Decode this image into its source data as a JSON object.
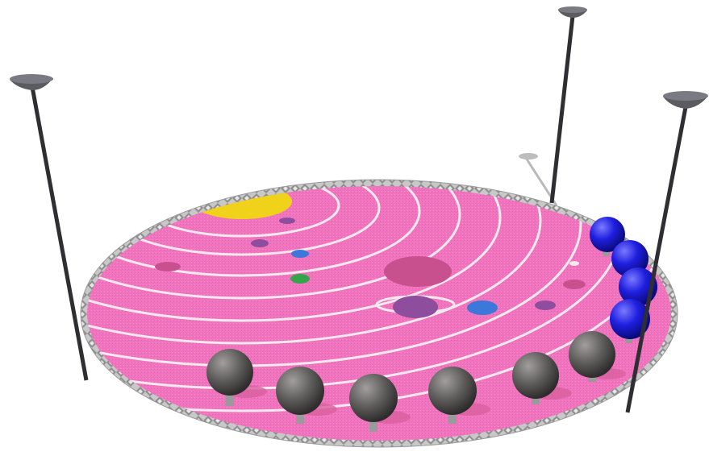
{
  "scene": {
    "subject": "solar-system-playground-render",
    "colors": {
      "background": "#ffffff",
      "surface": "#ef74bd",
      "surface_shadow": "#d9609f",
      "orbit_line": "#f6e9ee",
      "border": "#bdbdbd",
      "sun": "#f0d21b",
      "planet_purple": "#8e4e9d",
      "planet_blue": "#3b78d9",
      "planet_green": "#35a44a",
      "planet_dark_pink": "#c9508f",
      "post": "#2f2f33",
      "lamp": "#5b5b62",
      "seat_grey": "#5f5c5c",
      "seat_blue": "#1f1fe0"
    },
    "lamp_posts": 3,
    "grey_seats": 6,
    "blue_seats": 4
  }
}
